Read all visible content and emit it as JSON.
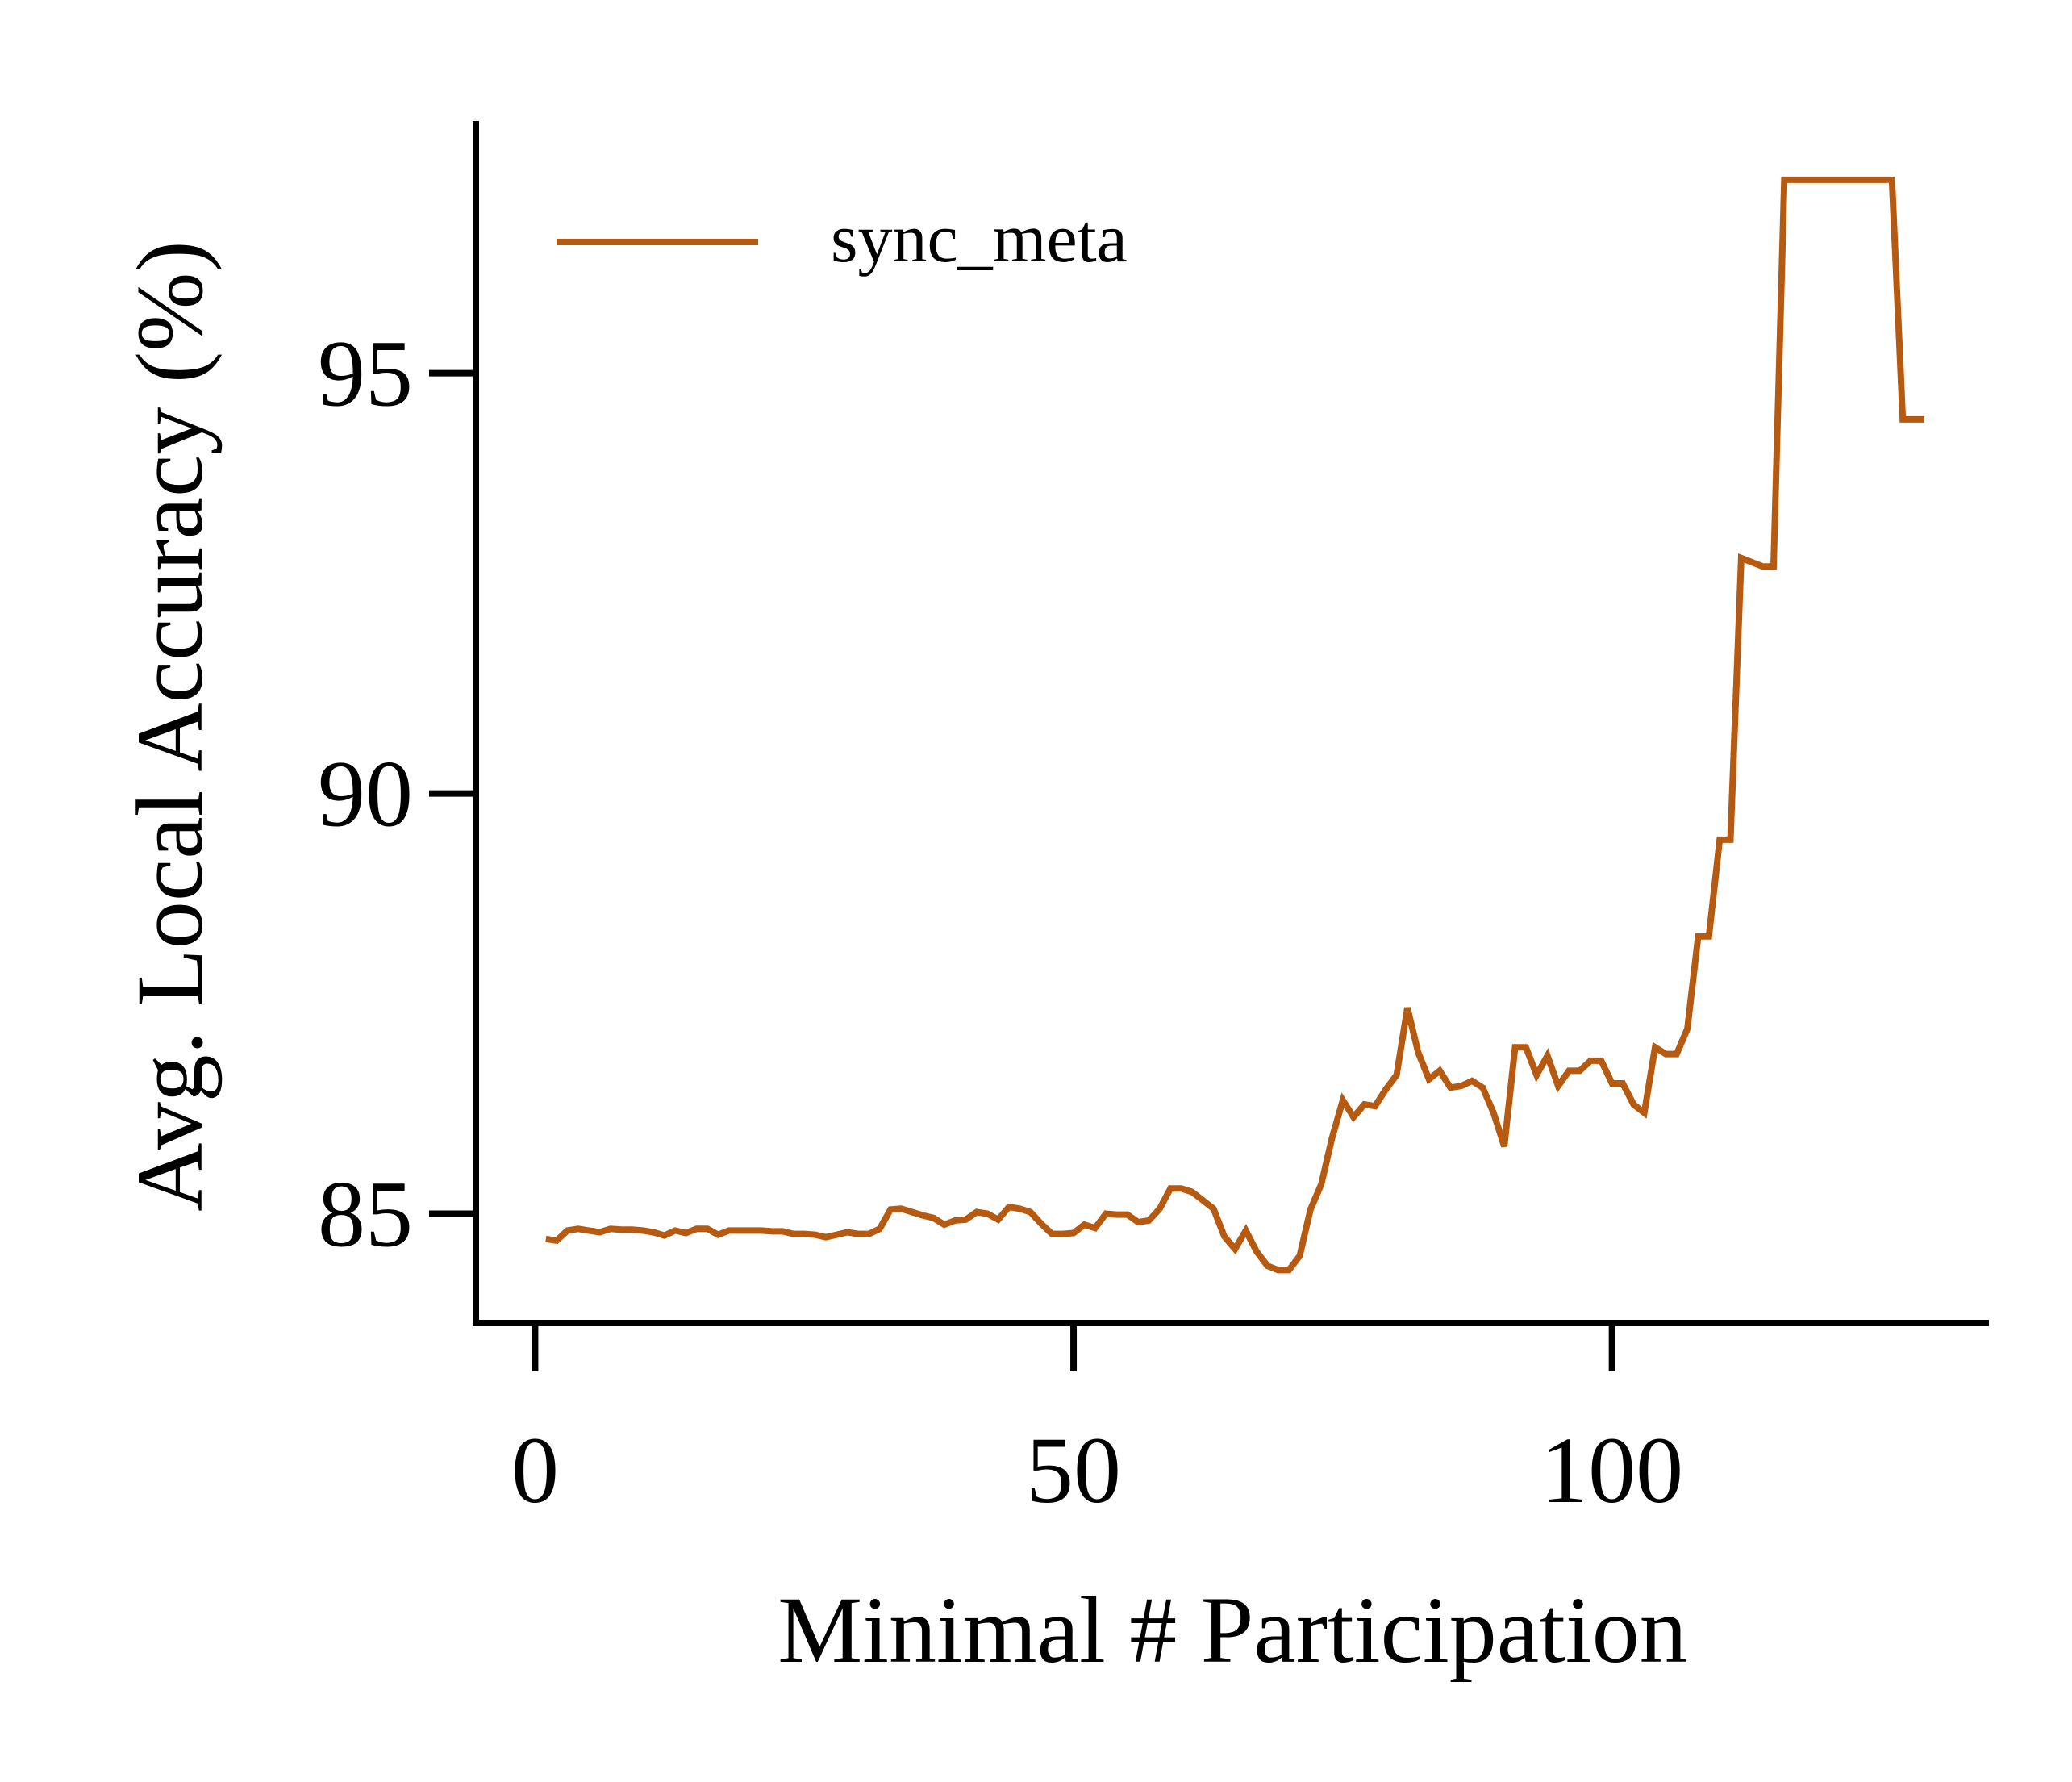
{
  "chart_data": {
    "type": "line",
    "xlabel": "Minimal # Participation",
    "ylabel": "Avg. Local Accuracy (%)",
    "xlim": [
      -5.5,
      135
    ],
    "ylim": [
      83.7,
      98.0
    ],
    "xticks": [
      0,
      50,
      100
    ],
    "yticks": [
      85,
      90,
      95
    ],
    "xtick_labels": [
      "0",
      "50",
      "100"
    ],
    "ytick_labels": [
      "85",
      "90",
      "95"
    ],
    "grid": false,
    "legend": {
      "position": "top-left"
    },
    "series": [
      {
        "name": "sync_meta",
        "color": "#b55a10",
        "x": [
          1,
          2,
          3,
          4,
          5,
          6,
          7,
          8,
          9,
          10,
          11,
          12,
          13,
          14,
          15,
          16,
          17,
          18,
          19,
          20,
          21,
          22,
          23,
          24,
          25,
          26,
          27,
          28,
          29,
          30,
          31,
          32,
          33,
          34,
          35,
          36,
          37,
          38,
          39,
          40,
          41,
          42,
          43,
          44,
          45,
          46,
          47,
          48,
          49,
          50,
          51,
          52,
          53,
          54,
          55,
          56,
          57,
          58,
          59,
          60,
          61,
          62,
          63,
          64,
          65,
          66,
          67,
          68,
          69,
          70,
          71,
          72,
          73,
          74,
          75,
          76,
          77,
          78,
          79,
          80,
          81,
          82,
          83,
          84,
          85,
          86,
          87,
          88,
          89,
          90,
          91,
          92,
          93,
          94,
          95,
          96,
          97,
          98,
          99,
          100,
          101,
          102,
          103,
          104,
          105,
          106,
          107,
          108,
          109,
          110,
          111,
          112,
          113,
          114,
          115,
          116,
          117,
          118,
          119,
          120,
          121,
          122,
          123,
          124,
          125,
          126,
          127,
          128,
          129
        ],
        "y": [
          84.7,
          84.68,
          84.8,
          84.82,
          84.8,
          84.78,
          84.82,
          84.81,
          84.81,
          84.8,
          84.78,
          84.74,
          84.8,
          84.77,
          84.82,
          84.82,
          84.75,
          84.8,
          84.8,
          84.8,
          84.8,
          84.79,
          84.79,
          84.76,
          84.76,
          84.75,
          84.72,
          84.75,
          84.78,
          84.76,
          84.76,
          84.82,
          85.05,
          85.06,
          85.02,
          84.98,
          84.95,
          84.87,
          84.92,
          84.93,
          85.02,
          85.0,
          84.93,
          85.08,
          85.06,
          85.02,
          84.88,
          84.76,
          84.76,
          84.77,
          84.87,
          84.83,
          85.0,
          84.99,
          84.99,
          84.9,
          84.92,
          85.06,
          85.3,
          85.3,
          85.26,
          85.16,
          85.06,
          84.73,
          84.58,
          84.8,
          84.55,
          84.38,
          84.33,
          84.33,
          84.5,
          85.05,
          85.35,
          85.9,
          86.35,
          86.15,
          86.3,
          86.28,
          86.48,
          86.65,
          87.45,
          86.92,
          86.6,
          86.7,
          86.5,
          86.52,
          86.58,
          86.5,
          86.2,
          85.8,
          86.98,
          86.98,
          86.65,
          86.88,
          86.52,
          86.7,
          86.7,
          86.82,
          86.82,
          86.55,
          86.55,
          86.3,
          86.2,
          86.98,
          86.9,
          86.9,
          87.2,
          88.3,
          88.3,
          89.45,
          89.45,
          92.8,
          92.75,
          92.7,
          92.7,
          97.3,
          97.3,
          97.3,
          97.3,
          97.3,
          97.3,
          97.3,
          97.3,
          97.3,
          97.3,
          97.3,
          94.45,
          94.45,
          94.45
        ]
      }
    ]
  }
}
